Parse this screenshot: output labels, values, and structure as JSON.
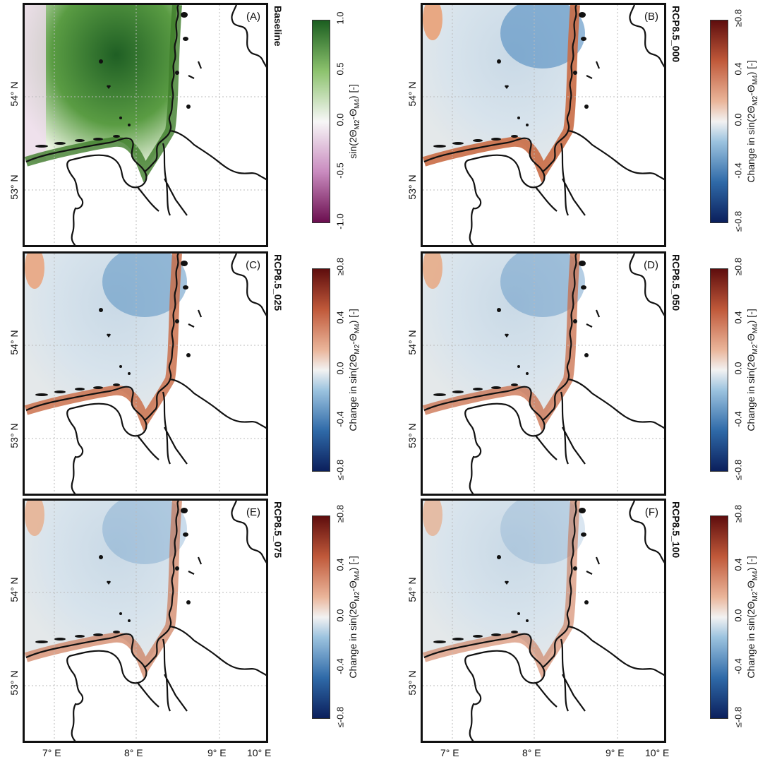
{
  "panels": [
    {
      "letter": "(A)",
      "title": "Baseline",
      "type": "baseline"
    },
    {
      "letter": "(B)",
      "title": "RCP8.5_000",
      "type": "change",
      "intensity": 1.0
    },
    {
      "letter": "(C)",
      "title": "RCP8.5_025",
      "type": "change",
      "intensity": 0.85
    },
    {
      "letter": "(D)",
      "title": "RCP8.5_050",
      "type": "change",
      "intensity": 0.7
    },
    {
      "letter": "(E)",
      "title": "RCP8.5_075",
      "type": "change",
      "intensity": 0.5
    },
    {
      "letter": "(F)",
      "title": "RCP8.5_100",
      "type": "change",
      "intensity": 0.35
    }
  ],
  "lat_labels": [
    "54° N",
    "53° N"
  ],
  "lon_labels": [
    "7° E",
    "8° E",
    "9° E",
    "10° E"
  ],
  "baseline_colorbar": {
    "ticks": [
      "-1.0",
      "-0.5",
      "0.0",
      "0.5",
      "1.0"
    ],
    "label_prefix": "sin(2Θ",
    "label_sub1": "M2",
    "label_mid": "-Θ",
    "label_sub2": "M4",
    "label_suffix": ") [-]",
    "colors": [
      "#6b0e4f",
      "#f7f7f7",
      "#1b5e20"
    ]
  },
  "change_colorbar": {
    "ticks": [
      "≤-0.8",
      "-0.4",
      "0.0",
      "0.4",
      "≥0.8"
    ],
    "label_prefix": "Change in sin(2Θ",
    "label_sub1": "M2",
    "label_mid": "-Θ",
    "label_sub2": "M4",
    "label_suffix": ") [-]",
    "colors": [
      "#0b1f5c",
      "#f2f2f2",
      "#5e0d0d"
    ]
  }
}
